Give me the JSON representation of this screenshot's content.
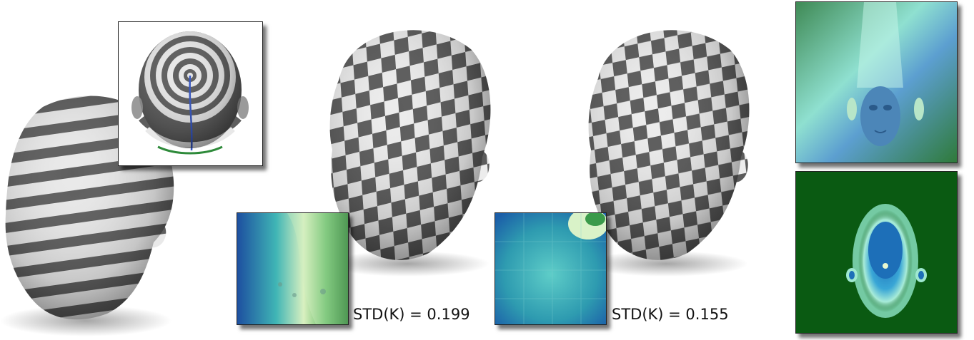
{
  "figure": {
    "panels": [
      {
        "id": "striped-head",
        "pattern": "stripes"
      },
      {
        "id": "spiral-inset",
        "pattern": "concentric-rings"
      },
      {
        "id": "checker-head-1",
        "pattern": "checkerboard",
        "std_caption": "STD(K) = 0.199"
      },
      {
        "id": "checker-head-2",
        "pattern": "checkerboard",
        "std_caption": "STD(K) = 0.155"
      },
      {
        "id": "normal-map",
        "pattern": "color-map"
      },
      {
        "id": "mask-map",
        "pattern": "distance-map"
      }
    ],
    "colors": {
      "dark_stripe": "#5f5f5f",
      "light_stripe": "#e8e8e8",
      "map_dark_green": "#0a5a12",
      "map_cyan": "#7fe8c8",
      "map_blue": "#1b57a8"
    }
  }
}
